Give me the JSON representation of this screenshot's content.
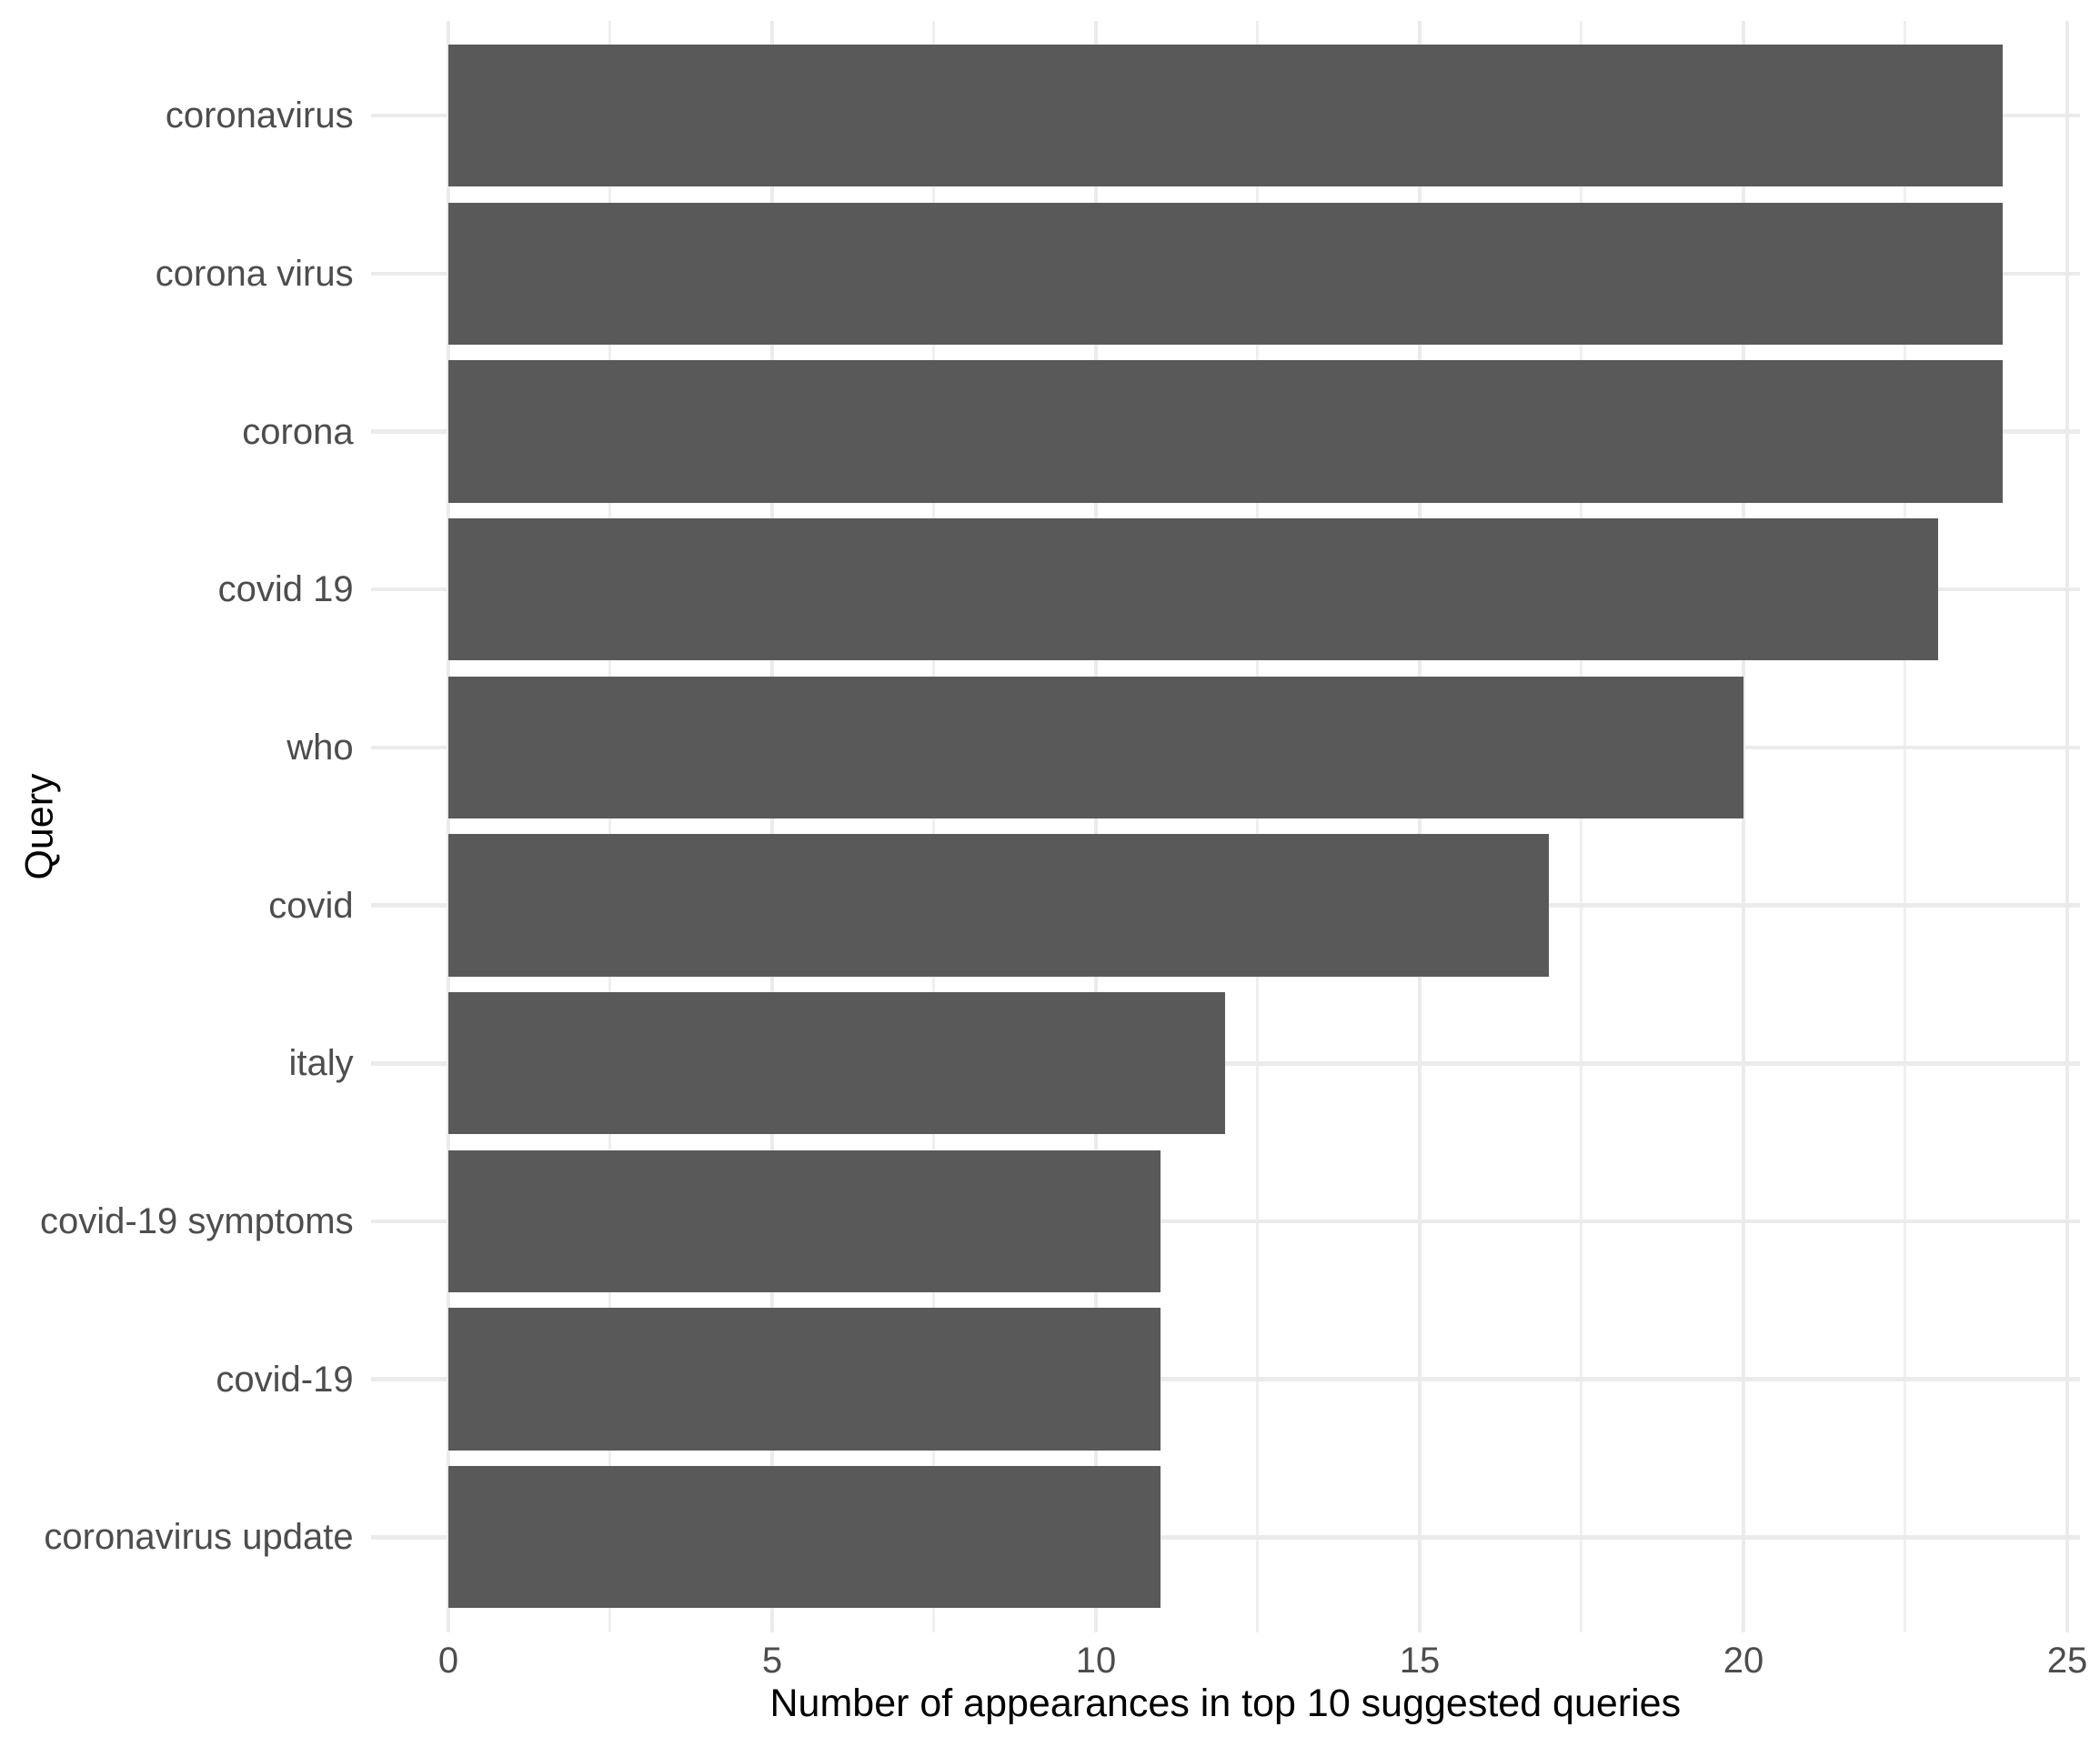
{
  "chart_data": {
    "type": "bar",
    "orientation": "horizontal",
    "title": "",
    "xlabel": "Number of appearances in top 10 suggested queries",
    "ylabel": "Query",
    "categories": [
      "coronavirus",
      "corona virus",
      "corona",
      "covid 19",
      "who",
      "covid",
      "italy",
      "covid-19 symptoms",
      "covid-19",
      "coronavirus update"
    ],
    "values": [
      24,
      24,
      24,
      23,
      20,
      17,
      12,
      11,
      11,
      11
    ],
    "xlim": [
      0,
      25
    ],
    "x_major_ticks": [
      0,
      5,
      10,
      15,
      20,
      25
    ],
    "x_tick_labels": [
      "0",
      "5",
      "10",
      "15",
      "20",
      "25"
    ],
    "x_minor_ticks": [
      2.5,
      7.5,
      12.5,
      17.5,
      22.5
    ],
    "grid": true,
    "legend": false,
    "colors": {
      "bar_fill": "#595959",
      "grid_major": "#EBEBEB",
      "grid_minor": "#EFEFEF",
      "tick_label": "#4D4D4D",
      "axis_title": "#000000",
      "background": "#FFFFFF"
    }
  }
}
